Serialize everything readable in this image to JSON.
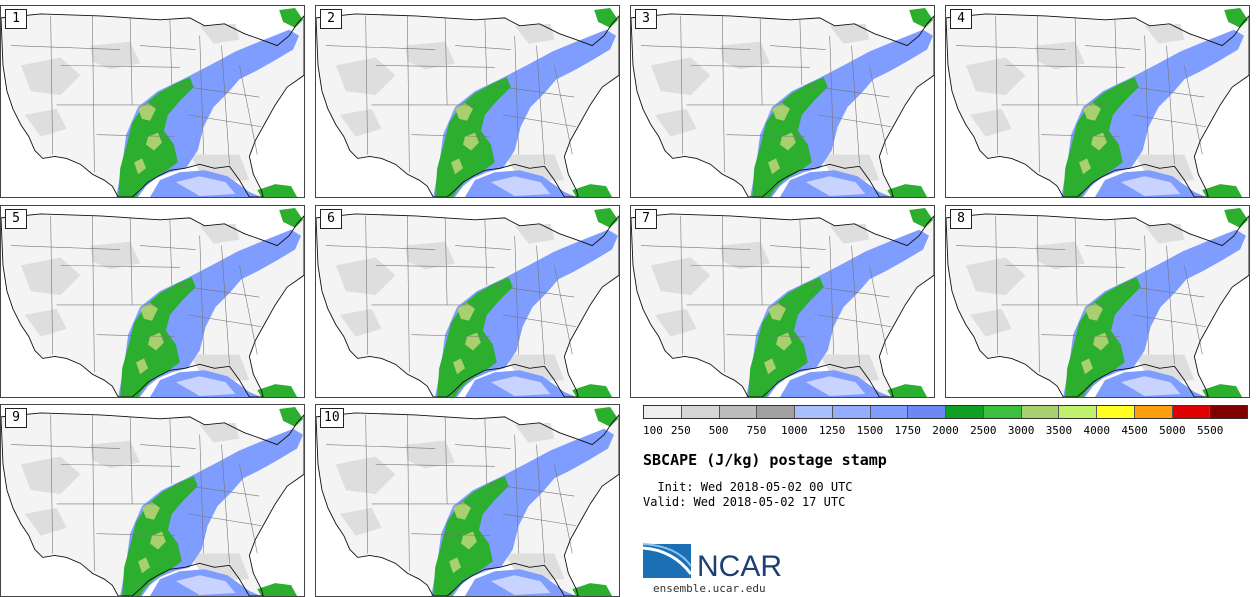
{
  "panels": [
    {
      "label": "1"
    },
    {
      "label": "2"
    },
    {
      "label": "3"
    },
    {
      "label": "4"
    },
    {
      "label": "5"
    },
    {
      "label": "6"
    },
    {
      "label": "7"
    },
    {
      "label": "8"
    },
    {
      "label": "9"
    },
    {
      "label": "10"
    }
  ],
  "colorbar": {
    "colors": [
      "#eeeeee",
      "#d6d6d6",
      "#bcbcbc",
      "#a0a0a0",
      "#aabfff",
      "#94adff",
      "#7f9cff",
      "#6b88f5",
      "#109f22",
      "#3cbe3e",
      "#a8d06e",
      "#c0f070",
      "#ffff20",
      "#ff9f10",
      "#e00000",
      "#800000"
    ],
    "ticks": [
      "100",
      "250",
      "500",
      "750",
      "1000",
      "1250",
      "1500",
      "1750",
      "2000",
      "2500",
      "3000",
      "3500",
      "4000",
      "4500",
      "5000",
      "5500"
    ]
  },
  "title": "SBCAPE (J/kg) postage stamp",
  "init_line": "  Init: Wed 2018-05-02 00 UTC",
  "valid_line": "Valid: Wed 2018-05-02 17 UTC",
  "logo": {
    "text": "NCAR",
    "arc_color": "#1a6fb5",
    "text_color": "#1d3f73"
  },
  "site": "ensemble.ucar.edu"
}
